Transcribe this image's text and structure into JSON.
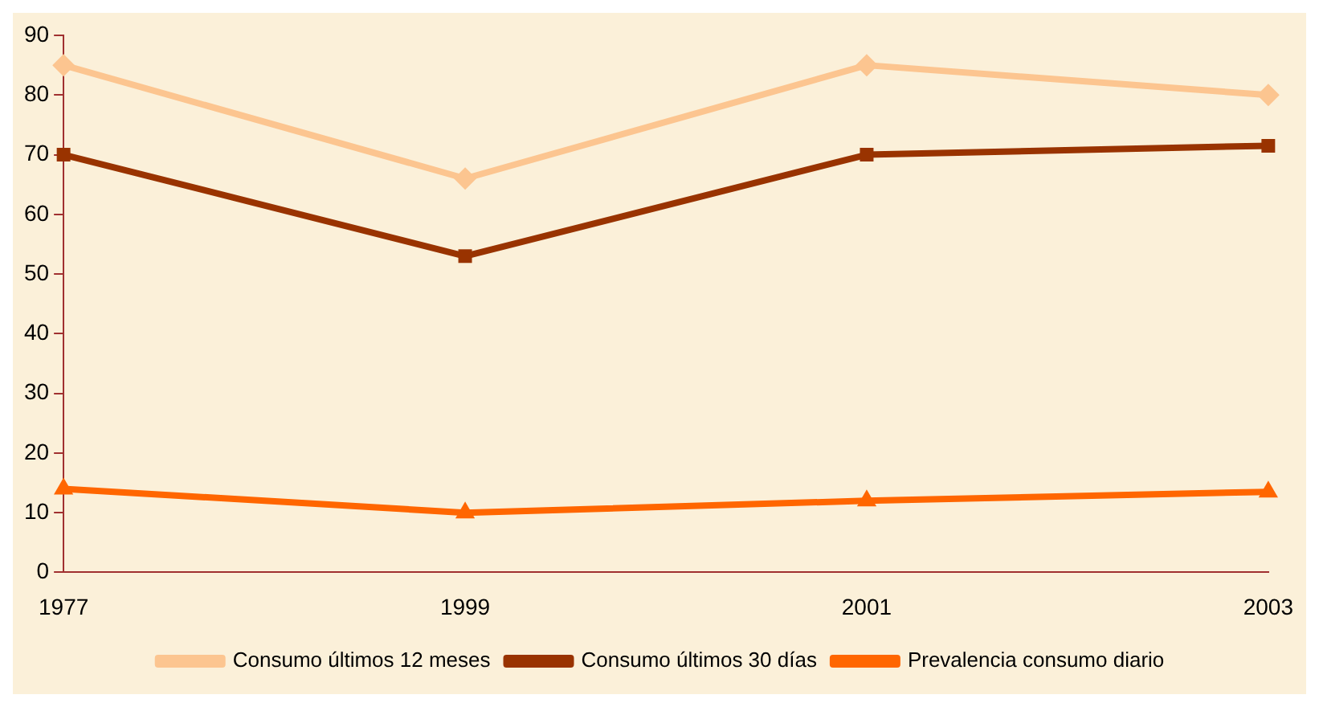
{
  "chart_data": {
    "type": "line",
    "categories": [
      "1977",
      "1999",
      "2001",
      "2003"
    ],
    "series": [
      {
        "name": "Consumo últimos 12 meses",
        "color": "#fcc590",
        "values": [
          85,
          66,
          85,
          80
        ],
        "marker": "diamond"
      },
      {
        "name": "Consumo últimos 30 días",
        "color": "#993300",
        "values": [
          70,
          53,
          70,
          71.5
        ],
        "marker": "square"
      },
      {
        "name": "Prevalencia consumo diario",
        "color": "#ff6600",
        "values": [
          14,
          10,
          12,
          13.5
        ],
        "marker": "triangle"
      }
    ],
    "ylim": [
      0,
      90
    ],
    "yticks": [
      0,
      10,
      20,
      30,
      40,
      50,
      60,
      70,
      80,
      90
    ],
    "grid": false,
    "legend": "bottom",
    "line_style": "solid"
  }
}
